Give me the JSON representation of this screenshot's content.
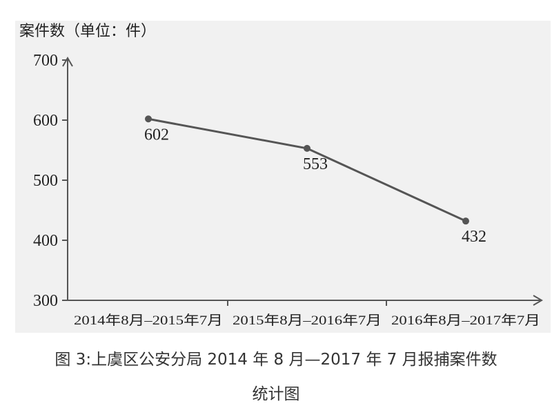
{
  "chart_data": {
    "type": "line",
    "y_label": "案件数（单位：件）",
    "categories": [
      "2014年8月–2015年7月",
      "2015年8月–2016年7月",
      "2016年8月–2017年7月"
    ],
    "values": [
      602,
      553,
      432
    ],
    "color": "#555555",
    "ylim": [
      300,
      700
    ],
    "yticks": [
      300,
      400,
      500,
      600,
      700
    ],
    "caption": [
      "图 3:上虞区公安分局 2014 年 8 月—2017 年 7 月报捕案件数",
      "统计图"
    ]
  }
}
